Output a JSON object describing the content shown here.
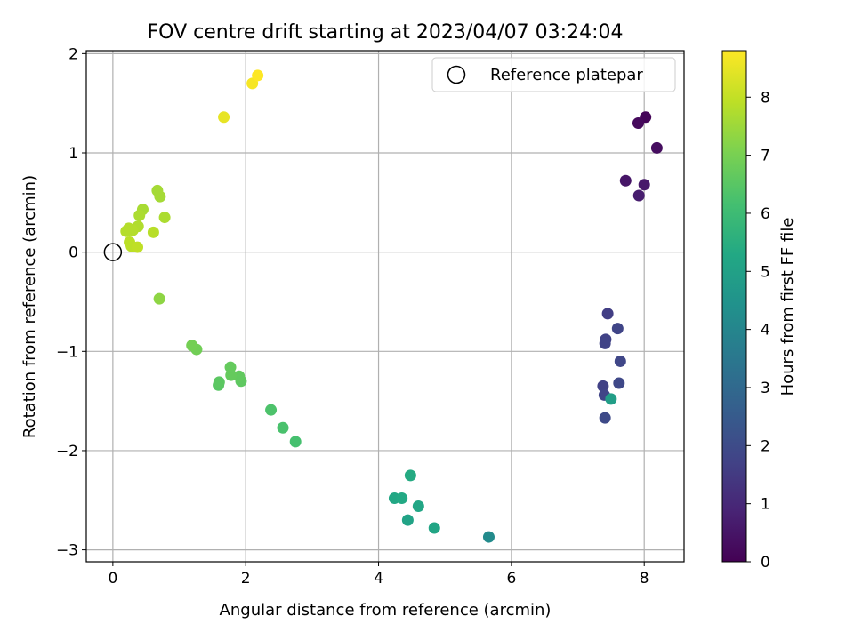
{
  "chart_data": {
    "type": "scatter",
    "title": "FOV centre drift starting at 2023/04/07 03:24:04",
    "xlabel": "Angular distance from reference (arcmin)",
    "ylabel": "Rotation from reference (arcmin)",
    "xlim": [
      -0.4,
      8.6
    ],
    "ylim": [
      -3.12,
      2.03
    ],
    "xticks": [
      0,
      2,
      4,
      6,
      8
    ],
    "xtick_labels": [
      "0",
      "2",
      "4",
      "6",
      "8"
    ],
    "yticks": [
      -3,
      -2,
      -1,
      0,
      1,
      2
    ],
    "ytick_labels": [
      "−3",
      "−2",
      "−1",
      "0",
      "1",
      "2"
    ],
    "grid": true,
    "legend": {
      "position": "top-right",
      "entries": [
        "Reference platepar"
      ]
    },
    "colorbar": {
      "label": "Hours from first FF file",
      "colormap": "viridis",
      "range": [
        0,
        8.8
      ],
      "ticks": [
        0,
        1,
        2,
        3,
        4,
        5,
        6,
        7,
        8
      ],
      "tick_labels": [
        "0",
        "1",
        "2",
        "3",
        "4",
        "5",
        "6",
        "7",
        "8"
      ]
    },
    "reference_point": {
      "name": "Reference platepar",
      "x": 0,
      "y": 0
    },
    "series": [
      {
        "points": [
          {
            "x": 8.02,
            "y": 1.36,
            "hours": 0.1
          },
          {
            "x": 7.91,
            "y": 1.3,
            "hours": 0.2
          },
          {
            "x": 8.19,
            "y": 1.05,
            "hours": 0.3
          },
          {
            "x": 7.72,
            "y": 0.72,
            "hours": 0.5
          },
          {
            "x": 8.0,
            "y": 0.68,
            "hours": 0.6
          },
          {
            "x": 7.92,
            "y": 0.57,
            "hours": 0.7
          },
          {
            "x": 7.45,
            "y": -0.62,
            "hours": 1.6
          },
          {
            "x": 7.6,
            "y": -0.77,
            "hours": 1.8
          },
          {
            "x": 7.42,
            "y": -0.88,
            "hours": 1.7
          },
          {
            "x": 7.41,
            "y": -0.92,
            "hours": 1.75
          },
          {
            "x": 7.64,
            "y": -1.1,
            "hours": 1.85
          },
          {
            "x": 7.38,
            "y": -1.35,
            "hours": 1.7
          },
          {
            "x": 7.62,
            "y": -1.32,
            "hours": 1.9
          },
          {
            "x": 7.4,
            "y": -1.44,
            "hours": 1.8
          },
          {
            "x": 7.41,
            "y": -1.67,
            "hours": 1.95
          },
          {
            "x": 7.5,
            "y": -1.48,
            "hours": 4.9
          },
          {
            "x": 5.66,
            "y": -2.87,
            "hours": 4.2
          },
          {
            "x": 4.84,
            "y": -2.78,
            "hours": 5.15
          },
          {
            "x": 4.44,
            "y": -2.7,
            "hours": 5.1
          },
          {
            "x": 4.6,
            "y": -2.56,
            "hours": 5.2
          },
          {
            "x": 4.24,
            "y": -2.48,
            "hours": 5.25
          },
          {
            "x": 4.35,
            "y": -2.48,
            "hours": 5.3
          },
          {
            "x": 4.48,
            "y": -2.25,
            "hours": 5.35
          },
          {
            "x": 2.75,
            "y": -1.91,
            "hours": 6.2
          },
          {
            "x": 2.56,
            "y": -1.77,
            "hours": 6.25
          },
          {
            "x": 2.38,
            "y": -1.59,
            "hours": 6.3
          },
          {
            "x": 1.59,
            "y": -1.34,
            "hours": 6.5
          },
          {
            "x": 1.6,
            "y": -1.31,
            "hours": 6.55
          },
          {
            "x": 1.93,
            "y": -1.3,
            "hours": 6.6
          },
          {
            "x": 1.9,
            "y": -1.25,
            "hours": 6.65
          },
          {
            "x": 1.78,
            "y": -1.24,
            "hours": 6.7
          },
          {
            "x": 1.77,
            "y": -1.16,
            "hours": 6.7
          },
          {
            "x": 1.26,
            "y": -0.98,
            "hours": 6.9
          },
          {
            "x": 1.19,
            "y": -0.94,
            "hours": 6.95
          },
          {
            "x": 0.7,
            "y": -0.47,
            "hours": 7.3
          },
          {
            "x": 0.67,
            "y": 0.62,
            "hours": 7.6
          },
          {
            "x": 0.71,
            "y": 0.56,
            "hours": 7.6
          },
          {
            "x": 0.45,
            "y": 0.43,
            "hours": 7.65
          },
          {
            "x": 0.4,
            "y": 0.37,
            "hours": 7.7
          },
          {
            "x": 0.78,
            "y": 0.35,
            "hours": 7.7
          },
          {
            "x": 0.38,
            "y": 0.26,
            "hours": 7.75
          },
          {
            "x": 0.24,
            "y": 0.24,
            "hours": 7.8
          },
          {
            "x": 0.3,
            "y": 0.22,
            "hours": 7.8
          },
          {
            "x": 0.2,
            "y": 0.21,
            "hours": 7.8
          },
          {
            "x": 0.61,
            "y": 0.2,
            "hours": 7.85
          },
          {
            "x": 0.25,
            "y": 0.1,
            "hours": 7.9
          },
          {
            "x": 0.28,
            "y": 0.06,
            "hours": 7.9
          },
          {
            "x": 0.37,
            "y": 0.05,
            "hours": 7.95
          },
          {
            "x": 1.67,
            "y": 1.36,
            "hours": 8.5
          },
          {
            "x": 2.1,
            "y": 1.7,
            "hours": 8.7
          },
          {
            "x": 2.18,
            "y": 1.78,
            "hours": 8.8
          }
        ]
      }
    ]
  }
}
